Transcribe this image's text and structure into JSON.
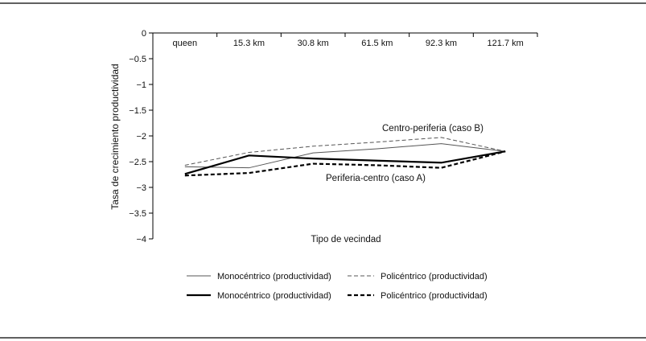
{
  "chart_data": {
    "type": "line",
    "xlabel": "Tipo de vecindad",
    "ylabel": "Tasa de crecimiento productividad",
    "categories": [
      "queen",
      "15.3 km",
      "30.8 km",
      "61.5 km",
      "92.3 km",
      "121.7 km"
    ],
    "ylim": [
      -4,
      0
    ],
    "yticks": [
      {
        "value": 0,
        "label": "0"
      },
      {
        "value": -0.5,
        "label": "−0.5"
      },
      {
        "value": -1,
        "label": "−1"
      },
      {
        "value": -1.5,
        "label": "−1.5"
      },
      {
        "value": -2,
        "label": "−2"
      },
      {
        "value": -2.5,
        "label": "−2.5"
      },
      {
        "value": -3,
        "label": "−3"
      },
      {
        "value": -3.5,
        "label": "−3.5"
      },
      {
        "value": -4,
        "label": "−4"
      }
    ],
    "grid": false,
    "legend_position": "bottom",
    "series": [
      {
        "name": "Monocéntrico (productividad)",
        "style": "thin-solid",
        "values": [
          -2.6,
          -2.62,
          -2.33,
          -2.25,
          -2.15,
          -2.3
        ]
      },
      {
        "name": "Policéntrico (productividad)",
        "style": "thin-dashed",
        "values": [
          -2.57,
          -2.32,
          -2.2,
          -2.12,
          -2.03,
          -2.3
        ]
      },
      {
        "name": "Monocéntrico (productividad)",
        "style": "thick-solid",
        "values": [
          -2.74,
          -2.38,
          -2.44,
          -2.48,
          -2.52,
          -2.3
        ]
      },
      {
        "name": "Policéntrico (productividad)",
        "style": "thick-dashed",
        "values": [
          -2.77,
          -2.72,
          -2.54,
          -2.57,
          -2.62,
          -2.3
        ]
      }
    ],
    "annotations": [
      {
        "text": "Centro-periferia (caso B)"
      },
      {
        "text": "Periferia-centro (caso A)"
      }
    ]
  }
}
